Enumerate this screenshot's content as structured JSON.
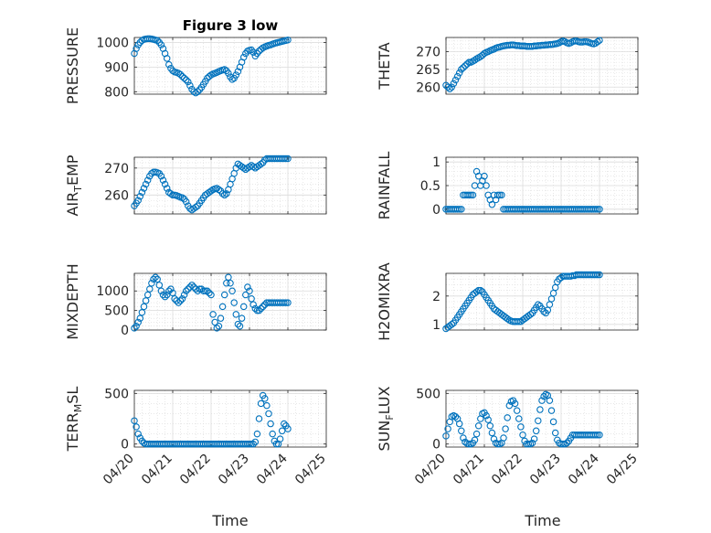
{
  "figure": {
    "title": "Figure 3 low",
    "xlabel": "Time"
  },
  "chart_data": [
    {
      "type": "scatter",
      "ylabel": "PRESSURE",
      "ylim": [
        790,
        1020
      ],
      "yticks": [
        800,
        900,
        1000
      ],
      "yticklabels": [
        "800",
        "900",
        "1000"
      ],
      "x": [
        0,
        0.05,
        0.1,
        0.15,
        0.2,
        0.25,
        0.3,
        0.35,
        0.4,
        0.45,
        0.5,
        0.55,
        0.6,
        0.65,
        0.7,
        0.75,
        0.8,
        0.85,
        0.9,
        0.95,
        1.0,
        1.05,
        1.1,
        1.15,
        1.2,
        1.25,
        1.3,
        1.35,
        1.4,
        1.45,
        1.5,
        1.55,
        1.6,
        1.65,
        1.7,
        1.75,
        1.8,
        1.85,
        1.9,
        1.95,
        2.0,
        2.05,
        2.1,
        2.15,
        2.2,
        2.25,
        2.3,
        2.35,
        2.4,
        2.45,
        2.5,
        2.55,
        2.6,
        2.65,
        2.7,
        2.75,
        2.8,
        2.85,
        2.9,
        2.95,
        3.0,
        3.05,
        3.1,
        3.15,
        3.2,
        3.25,
        3.3,
        3.35,
        3.4,
        3.45,
        3.5,
        3.55,
        3.6,
        3.65,
        3.7,
        3.75,
        3.8,
        3.85,
        3.9,
        3.95,
        4.0
      ],
      "y": [
        955,
        975,
        990,
        1000,
        1008,
        1012,
        1014,
        1015,
        1015,
        1014,
        1012,
        1010,
        1008,
        1000,
        990,
        975,
        955,
        935,
        910,
        895,
        885,
        880,
        878,
        875,
        870,
        862,
        855,
        848,
        840,
        825,
        810,
        800,
        795,
        800,
        808,
        818,
        830,
        842,
        855,
        862,
        868,
        872,
        875,
        878,
        882,
        885,
        888,
        890,
        885,
        875,
        860,
        850,
        855,
        868,
        882,
        900,
        920,
        940,
        955,
        965,
        968,
        970,
        960,
        945,
        955,
        965,
        972,
        978,
        982,
        985,
        988,
        990,
        993,
        996,
        998,
        1000,
        1002,
        1004,
        1006,
        1008,
        1010
      ]
    },
    {
      "type": "scatter",
      "ylabel": "THETA",
      "ylim": [
        258,
        274
      ],
      "yticks": [
        260,
        265,
        270
      ],
      "yticklabels": [
        "260",
        "265",
        "270"
      ],
      "x": [
        0,
        0.05,
        0.1,
        0.15,
        0.2,
        0.25,
        0.3,
        0.35,
        0.4,
        0.45,
        0.5,
        0.55,
        0.6,
        0.65,
        0.7,
        0.75,
        0.8,
        0.85,
        0.9,
        0.95,
        1.0,
        1.05,
        1.1,
        1.15,
        1.2,
        1.25,
        1.3,
        1.35,
        1.4,
        1.45,
        1.5,
        1.55,
        1.6,
        1.65,
        1.7,
        1.75,
        1.8,
        1.85,
        1.9,
        1.95,
        2.0,
        2.05,
        2.1,
        2.15,
        2.2,
        2.25,
        2.3,
        2.35,
        2.4,
        2.45,
        2.5,
        2.55,
        2.6,
        2.65,
        2.7,
        2.75,
        2.8,
        2.85,
        2.9,
        2.95,
        3.0,
        3.05,
        3.1,
        3.15,
        3.2,
        3.25,
        3.3,
        3.35,
        3.4,
        3.45,
        3.5,
        3.55,
        3.6,
        3.65,
        3.7,
        3.75,
        3.8,
        3.85,
        3.9,
        3.95,
        4.0
      ],
      "y": [
        260.5,
        260,
        259.5,
        260,
        261,
        262,
        263,
        264,
        265,
        265.5,
        266,
        266.5,
        267,
        267,
        267.3,
        267.6,
        268,
        268.3,
        268.6,
        269,
        269.5,
        269.8,
        270,
        270.3,
        270.5,
        270.7,
        271,
        271.2,
        271.3,
        271.5,
        271.6,
        271.7,
        271.8,
        271.8,
        271.9,
        271.9,
        271.8,
        271.7,
        271.7,
        271.6,
        271.6,
        271.6,
        271.5,
        271.5,
        271.5,
        271.5,
        271.6,
        271.6,
        271.7,
        271.7,
        271.8,
        271.8,
        271.9,
        271.9,
        272,
        272,
        272.1,
        272.2,
        272.3,
        272.5,
        272.8,
        273,
        272.8,
        272.5,
        272.3,
        272.5,
        272.8,
        273,
        273,
        272.8,
        272.7,
        272.7,
        272.8,
        272.8,
        272.7,
        272.5,
        272.3,
        272.2,
        272.4,
        272.8,
        273.2
      ]
    },
    {
      "type": "scatter",
      "ylabel": "AIR_TEMP",
      "ylim": [
        253,
        274
      ],
      "yticks": [
        260,
        270
      ],
      "yticklabels": [
        "260",
        "270"
      ],
      "x": [
        0,
        0.05,
        0.1,
        0.15,
        0.2,
        0.25,
        0.3,
        0.35,
        0.4,
        0.45,
        0.5,
        0.55,
        0.6,
        0.65,
        0.7,
        0.75,
        0.8,
        0.85,
        0.9,
        0.95,
        1.0,
        1.05,
        1.1,
        1.15,
        1.2,
        1.25,
        1.3,
        1.35,
        1.4,
        1.45,
        1.5,
        1.55,
        1.6,
        1.65,
        1.7,
        1.75,
        1.8,
        1.85,
        1.9,
        1.95,
        2.0,
        2.05,
        2.1,
        2.15,
        2.2,
        2.25,
        2.3,
        2.35,
        2.4,
        2.45,
        2.5,
        2.55,
        2.6,
        2.65,
        2.7,
        2.75,
        2.8,
        2.85,
        2.9,
        2.95,
        3.0,
        3.05,
        3.1,
        3.15,
        3.2,
        3.25,
        3.3,
        3.35,
        3.4,
        3.45,
        3.5,
        3.55,
        3.6,
        3.65,
        3.7,
        3.75,
        3.8,
        3.85,
        3.9,
        3.95,
        4.0
      ],
      "y": [
        256,
        257,
        258,
        259.5,
        261,
        262.5,
        264,
        265.5,
        267,
        268,
        268.5,
        268.5,
        268.3,
        268,
        267,
        265.5,
        264,
        262.5,
        261,
        260.5,
        260,
        260,
        259.8,
        259.5,
        259.2,
        259,
        258.5,
        257.5,
        256,
        255,
        254.5,
        255,
        255.5,
        256,
        257,
        258,
        259,
        260,
        260.5,
        261,
        261.5,
        262,
        262.3,
        262.5,
        262,
        261.5,
        260.5,
        260,
        260.5,
        262,
        264,
        266,
        268,
        270,
        271.5,
        271,
        270.5,
        270,
        269.5,
        270,
        270.5,
        271,
        270.5,
        270,
        270.5,
        271,
        271.5,
        272,
        273,
        273.5,
        273.5,
        273.5,
        273.5,
        273.5,
        273.5,
        273.5,
        273.5,
        273.5,
        273.5,
        273.5,
        273.5
      ]
    },
    {
      "type": "scatter",
      "ylabel": "RAINFALL",
      "ylim": [
        -0.1,
        1.1
      ],
      "yticks": [
        0,
        0.5,
        1
      ],
      "yticklabels": [
        "0",
        "0.5",
        "1"
      ],
      "x": [
        0,
        0.05,
        0.1,
        0.15,
        0.2,
        0.25,
        0.3,
        0.35,
        0.4,
        0.45,
        0.5,
        0.55,
        0.6,
        0.65,
        0.7,
        0.75,
        0.8,
        0.85,
        0.9,
        0.95,
        1.0,
        1.05,
        1.1,
        1.15,
        1.2,
        1.25,
        1.3,
        1.35,
        1.4,
        1.45,
        1.5,
        1.55,
        1.6,
        1.65,
        1.7,
        1.75,
        1.8,
        1.85,
        1.9,
        1.95,
        2.0,
        2.05,
        2.1,
        2.15,
        2.2,
        2.25,
        2.3,
        2.35,
        2.4,
        2.45,
        2.5,
        2.55,
        2.6,
        2.65,
        2.7,
        2.75,
        2.8,
        2.85,
        2.9,
        2.95,
        3.0,
        3.05,
        3.1,
        3.15,
        3.2,
        3.25,
        3.3,
        3.35,
        3.4,
        3.45,
        3.5,
        3.55,
        3.6,
        3.65,
        3.7,
        3.75,
        3.8,
        3.85,
        3.9,
        3.95,
        4.0
      ],
      "y": [
        0,
        0,
        0,
        0,
        0,
        0,
        0,
        0,
        0,
        0.3,
        0.3,
        0.3,
        0.3,
        0.3,
        0.3,
        0.5,
        0.8,
        0.7,
        0.5,
        0.6,
        0.7,
        0.5,
        0.3,
        0.2,
        0.1,
        0.3,
        0.2,
        0.3,
        0.3,
        0.3,
        0,
        0,
        0,
        0,
        0,
        0,
        0,
        0,
        0,
        0,
        0,
        0,
        0,
        0,
        0,
        0,
        0,
        0,
        0,
        0,
        0,
        0,
        0,
        0,
        0,
        0,
        0,
        0,
        0,
        0,
        0,
        0,
        0,
        0,
        0,
        0,
        0,
        0,
        0,
        0,
        0,
        0,
        0,
        0,
        0,
        0,
        0,
        0,
        0,
        0,
        0
      ]
    },
    {
      "type": "scatter",
      "ylabel": "MIXDEPTH",
      "ylim": [
        0,
        1450
      ],
      "yticks": [
        0,
        500,
        1000
      ],
      "yticklabels": [
        "0",
        "500",
        "1000"
      ],
      "x": [
        0,
        0.05,
        0.1,
        0.15,
        0.2,
        0.25,
        0.3,
        0.35,
        0.4,
        0.45,
        0.5,
        0.55,
        0.6,
        0.65,
        0.7,
        0.75,
        0.8,
        0.85,
        0.9,
        0.95,
        1.0,
        1.05,
        1.1,
        1.15,
        1.2,
        1.25,
        1.3,
        1.35,
        1.4,
        1.45,
        1.5,
        1.55,
        1.6,
        1.65,
        1.7,
        1.75,
        1.8,
        1.85,
        1.9,
        1.95,
        2.0,
        2.05,
        2.1,
        2.15,
        2.2,
        2.25,
        2.3,
        2.35,
        2.4,
        2.45,
        2.5,
        2.55,
        2.6,
        2.65,
        2.7,
        2.75,
        2.8,
        2.85,
        2.9,
        2.95,
        3.0,
        3.05,
        3.1,
        3.15,
        3.2,
        3.25,
        3.3,
        3.35,
        3.4,
        3.45,
        3.5,
        3.55,
        3.6,
        3.65,
        3.7,
        3.75,
        3.8,
        3.85,
        3.9,
        3.95,
        4.0
      ],
      "y": [
        50,
        100,
        200,
        300,
        450,
        600,
        750,
        900,
        1050,
        1200,
        1300,
        1350,
        1300,
        1150,
        1000,
        900,
        850,
        900,
        1000,
        1050,
        950,
        800,
        750,
        700,
        750,
        800,
        900,
        1000,
        1050,
        1100,
        1150,
        1100,
        1050,
        1000,
        1050,
        1050,
        1000,
        1000,
        1000,
        950,
        900,
        400,
        200,
        50,
        100,
        300,
        600,
        900,
        1200,
        1350,
        1200,
        1000,
        700,
        400,
        150,
        100,
        300,
        600,
        900,
        1100,
        1000,
        800,
        650,
        550,
        500,
        500,
        550,
        600,
        650,
        700,
        700,
        700,
        700,
        700,
        700,
        700,
        700,
        700,
        700,
        700,
        700
      ]
    },
    {
      "type": "scatter",
      "ylabel": "H2OMIXRA",
      "ylim": [
        0.8,
        2.8
      ],
      "yticks": [
        1,
        2
      ],
      "yticklabels": [
        "1",
        "2"
      ],
      "x": [
        0,
        0.05,
        0.1,
        0.15,
        0.2,
        0.25,
        0.3,
        0.35,
        0.4,
        0.45,
        0.5,
        0.55,
        0.6,
        0.65,
        0.7,
        0.75,
        0.8,
        0.85,
        0.9,
        0.95,
        1.0,
        1.05,
        1.1,
        1.15,
        1.2,
        1.25,
        1.3,
        1.35,
        1.4,
        1.45,
        1.5,
        1.55,
        1.6,
        1.65,
        1.7,
        1.75,
        1.8,
        1.85,
        1.9,
        1.95,
        2.0,
        2.05,
        2.1,
        2.15,
        2.2,
        2.25,
        2.3,
        2.35,
        2.4,
        2.45,
        2.5,
        2.55,
        2.6,
        2.65,
        2.7,
        2.75,
        2.8,
        2.85,
        2.9,
        2.95,
        3.0,
        3.05,
        3.1,
        3.15,
        3.2,
        3.25,
        3.3,
        3.35,
        3.4,
        3.45,
        3.5,
        3.55,
        3.6,
        3.65,
        3.7,
        3.75,
        3.8,
        3.85,
        3.9,
        3.95,
        4.0
      ],
      "y": [
        0.85,
        0.9,
        0.95,
        1.0,
        1.05,
        1.15,
        1.25,
        1.35,
        1.45,
        1.55,
        1.65,
        1.75,
        1.85,
        1.95,
        2.05,
        2.1,
        2.15,
        2.2,
        2.2,
        2.15,
        2.05,
        1.95,
        1.85,
        1.75,
        1.65,
        1.55,
        1.5,
        1.45,
        1.4,
        1.35,
        1.3,
        1.25,
        1.2,
        1.15,
        1.12,
        1.1,
        1.1,
        1.1,
        1.1,
        1.1,
        1.15,
        1.2,
        1.25,
        1.3,
        1.35,
        1.4,
        1.5,
        1.6,
        1.7,
        1.65,
        1.55,
        1.45,
        1.4,
        1.5,
        1.7,
        1.9,
        2.1,
        2.3,
        2.5,
        2.6,
        2.65,
        2.7,
        2.7,
        2.7,
        2.7,
        2.7,
        2.72,
        2.72,
        2.75,
        2.75,
        2.75,
        2.75,
        2.75,
        2.75,
        2.75,
        2.75,
        2.75,
        2.75,
        2.75,
        2.75,
        2.75
      ]
    },
    {
      "type": "scatter",
      "ylabel": "TERR_MSL",
      "ylim": [
        -30,
        530
      ],
      "yticks": [
        0,
        500
      ],
      "yticklabels": [
        "0",
        "500"
      ],
      "xticks": [
        0,
        1,
        2,
        3,
        4,
        5
      ],
      "xticklabels": [
        "04/20",
        "04/21",
        "04/22",
        "04/23",
        "04/24",
        "04/25"
      ],
      "x": [
        0,
        0.05,
        0.1,
        0.15,
        0.2,
        0.25,
        0.3,
        0.35,
        0.4,
        0.45,
        0.5,
        0.55,
        0.6,
        0.65,
        0.7,
        0.75,
        0.8,
        0.85,
        0.9,
        0.95,
        1.0,
        1.05,
        1.1,
        1.15,
        1.2,
        1.25,
        1.3,
        1.35,
        1.4,
        1.45,
        1.5,
        1.55,
        1.6,
        1.65,
        1.7,
        1.75,
        1.8,
        1.85,
        1.9,
        1.95,
        2.0,
        2.05,
        2.1,
        2.15,
        2.2,
        2.25,
        2.3,
        2.35,
        2.4,
        2.45,
        2.5,
        2.55,
        2.6,
        2.65,
        2.7,
        2.75,
        2.8,
        2.85,
        2.9,
        2.95,
        3.0,
        3.05,
        3.1,
        3.15,
        3.2,
        3.25,
        3.3,
        3.35,
        3.4,
        3.45,
        3.5,
        3.55,
        3.6,
        3.65,
        3.7,
        3.75,
        3.8,
        3.85,
        3.9,
        3.95,
        4.0
      ],
      "y": [
        230,
        170,
        100,
        60,
        30,
        10,
        0,
        0,
        0,
        0,
        0,
        0,
        0,
        0,
        0,
        0,
        0,
        0,
        0,
        0,
        0,
        0,
        0,
        0,
        0,
        0,
        0,
        0,
        0,
        0,
        0,
        0,
        0,
        0,
        0,
        0,
        0,
        0,
        0,
        0,
        0,
        0,
        0,
        0,
        0,
        0,
        0,
        0,
        0,
        0,
        0,
        0,
        0,
        0,
        0,
        0,
        0,
        0,
        0,
        0,
        0,
        0,
        0,
        20,
        100,
        250,
        400,
        480,
        450,
        380,
        300,
        200,
        100,
        30,
        0,
        0,
        50,
        130,
        200,
        180,
        150
      ]
    },
    {
      "type": "scatter",
      "ylabel": "SUN_FLUX",
      "ylim": [
        -30,
        530
      ],
      "yticks": [
        0,
        500
      ],
      "yticklabels": [
        "0",
        "500"
      ],
      "xticks": [
        0,
        1,
        2,
        3,
        4,
        5
      ],
      "xticklabels": [
        "04/20",
        "04/21",
        "04/22",
        "04/23",
        "04/24",
        "04/25"
      ],
      "x": [
        0,
        0.05,
        0.1,
        0.15,
        0.2,
        0.25,
        0.3,
        0.35,
        0.4,
        0.45,
        0.5,
        0.55,
        0.6,
        0.65,
        0.7,
        0.75,
        0.8,
        0.85,
        0.9,
        0.95,
        1.0,
        1.05,
        1.1,
        1.15,
        1.2,
        1.25,
        1.3,
        1.35,
        1.4,
        1.45,
        1.5,
        1.55,
        1.6,
        1.65,
        1.7,
        1.75,
        1.8,
        1.85,
        1.9,
        1.95,
        2.0,
        2.05,
        2.1,
        2.15,
        2.2,
        2.25,
        2.3,
        2.35,
        2.4,
        2.45,
        2.5,
        2.55,
        2.6,
        2.65,
        2.7,
        2.75,
        2.8,
        2.85,
        2.9,
        2.95,
        3.0,
        3.05,
        3.1,
        3.15,
        3.2,
        3.25,
        3.3,
        3.35,
        3.4,
        3.45,
        3.5,
        3.55,
        3.6,
        3.65,
        3.7,
        3.75,
        3.8,
        3.85,
        3.9,
        3.95,
        4.0
      ],
      "y": [
        80,
        150,
        220,
        270,
        280,
        270,
        250,
        200,
        130,
        60,
        20,
        5,
        0,
        0,
        10,
        40,
        100,
        180,
        250,
        300,
        310,
        280,
        240,
        180,
        110,
        50,
        10,
        0,
        0,
        10,
        60,
        150,
        260,
        380,
        420,
        430,
        400,
        330,
        250,
        170,
        90,
        30,
        0,
        0,
        0,
        10,
        50,
        130,
        230,
        340,
        430,
        470,
        490,
        480,
        430,
        330,
        220,
        110,
        40,
        10,
        0,
        0,
        0,
        10,
        30,
        60,
        90,
        90,
        90,
        90,
        90,
        90,
        90,
        90,
        90,
        90,
        90,
        90,
        90,
        90,
        90
      ]
    }
  ]
}
